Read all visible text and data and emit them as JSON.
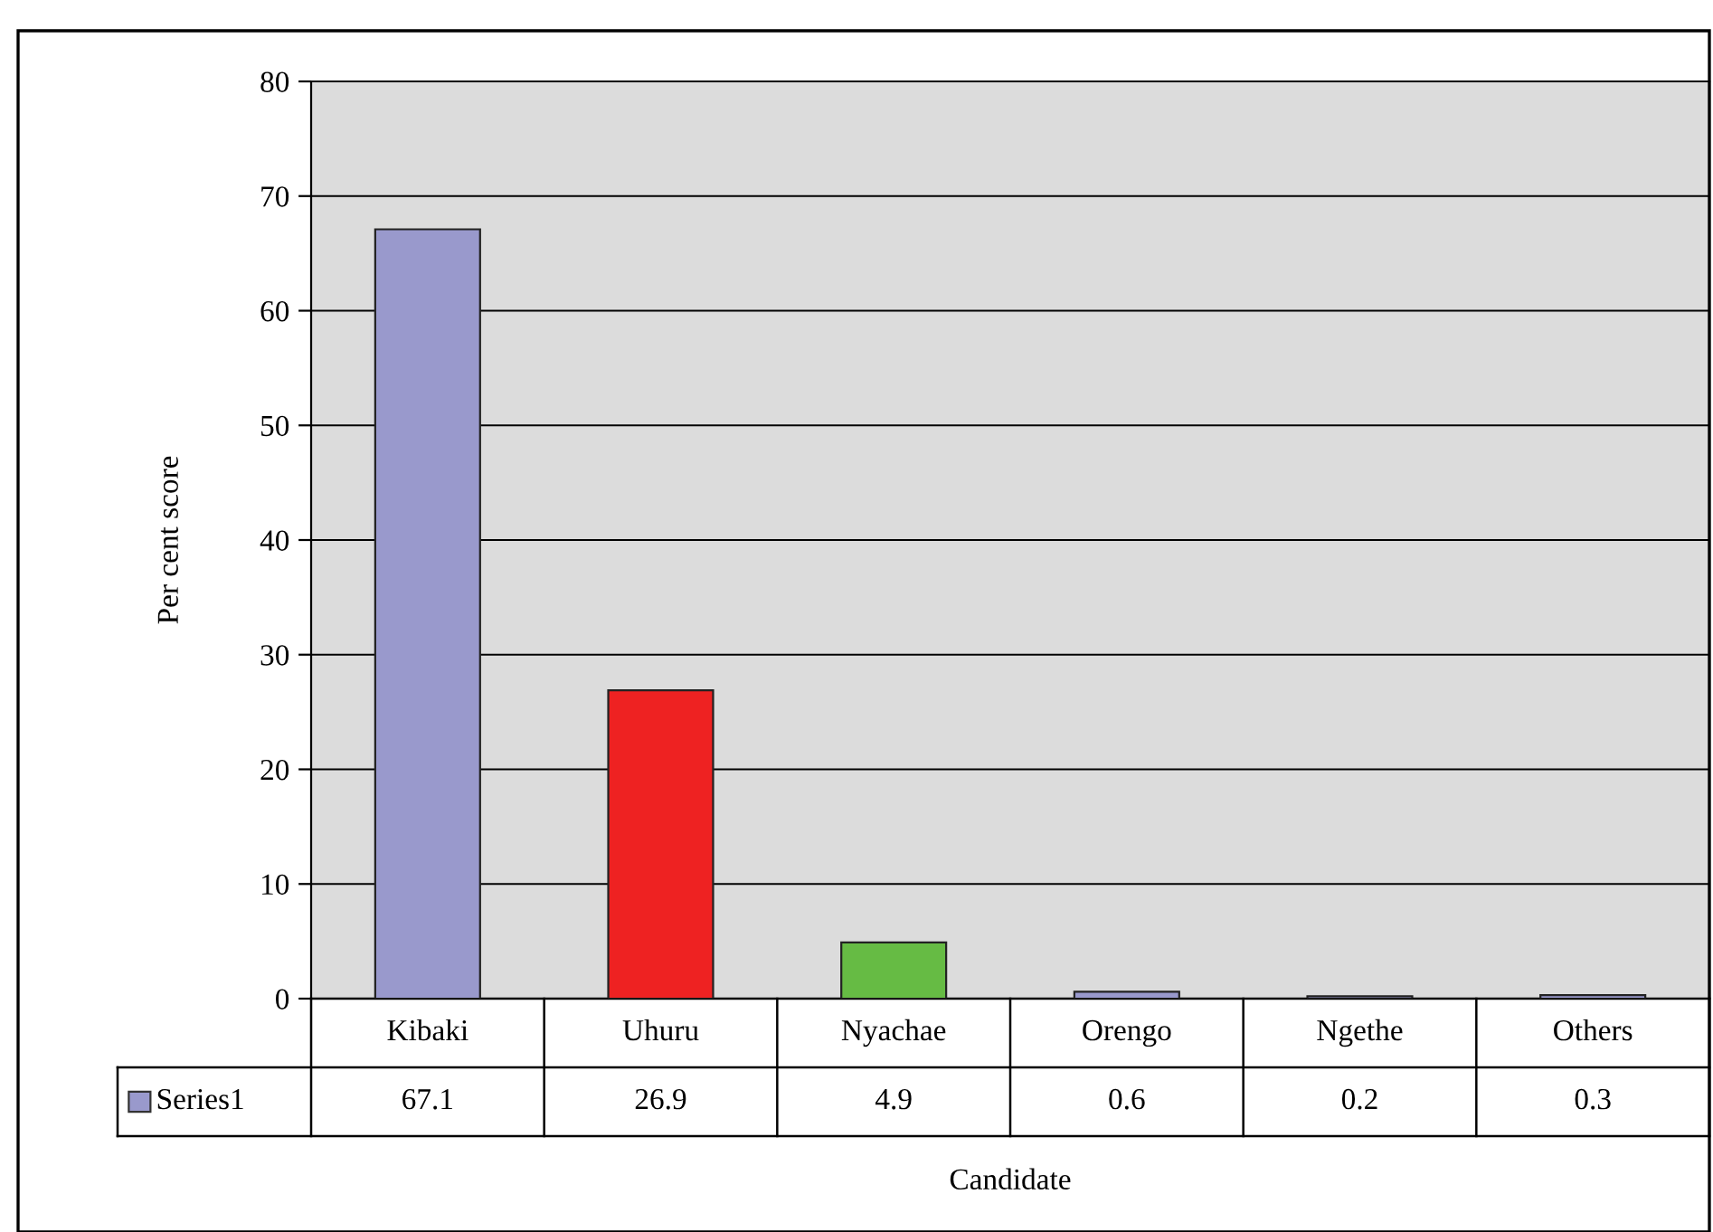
{
  "chart_data": {
    "type": "bar",
    "xlabel": "Candidate",
    "ylabel": "Per cent score",
    "categories": [
      "Kibaki",
      "Uhuru",
      "Nyachae",
      "Orengo",
      "Ngethe",
      "Others"
    ],
    "series": [
      {
        "name": "Series1",
        "color": "#9999cc",
        "colors": [
          "#9999cc",
          "#ee2222",
          "#66bb44",
          "#9999cc",
          "#9999cc",
          "#9999cc"
        ],
        "values": [
          67.1,
          26.9,
          4.9,
          0.6,
          0.2,
          0.3
        ]
      }
    ],
    "ylim": [
      0,
      80
    ],
    "yticks": [
      0,
      10,
      20,
      30,
      40,
      50,
      60,
      70,
      80
    ],
    "grid": "y",
    "legend": "bottom left",
    "data_labels": true
  }
}
